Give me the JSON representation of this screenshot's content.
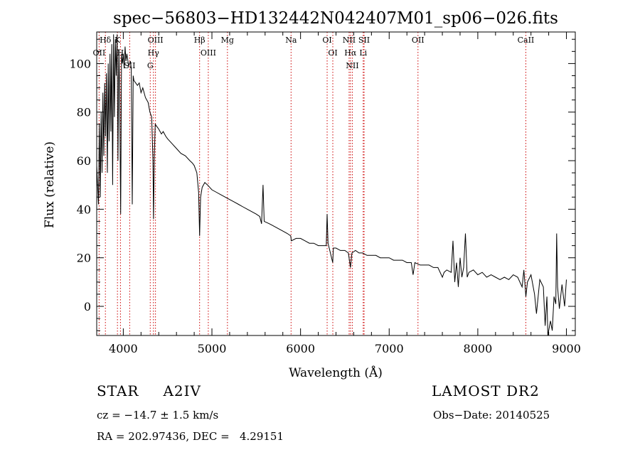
{
  "chart_data": {
    "type": "line",
    "title": "spec−56803−HD132442N042407M01_sp06−026.fits",
    "xlabel": "Wavelength (Å)",
    "ylabel": "Flux (relative)",
    "xlim": [
      3700,
      9100
    ],
    "ylim": [
      -12,
      113
    ],
    "xticks": [
      4000,
      5000,
      6000,
      7000,
      8000,
      9000
    ],
    "yticks": [
      0,
      20,
      40,
      60,
      80,
      100
    ],
    "grid": false,
    "series": [
      {
        "color": "#000000",
        "points": [
          [
            3700,
            58
          ],
          [
            3720,
            42
          ],
          [
            3730,
            75
          ],
          [
            3740,
            45
          ],
          [
            3750,
            80
          ],
          [
            3760,
            55
          ],
          [
            3770,
            88
          ],
          [
            3780,
            62
          ],
          [
            3790,
            92
          ],
          [
            3800,
            70
          ],
          [
            3810,
            96
          ],
          [
            3820,
            55
          ],
          [
            3830,
            100
          ],
          [
            3840,
            68
          ],
          [
            3850,
            104
          ],
          [
            3860,
            72
          ],
          [
            3870,
            108
          ],
          [
            3880,
            50
          ],
          [
            3890,
            112
          ],
          [
            3900,
            78
          ],
          [
            3910,
            110
          ],
          [
            3920,
            95
          ],
          [
            3930,
            112
          ],
          [
            3940,
            60
          ],
          [
            3950,
            106
          ],
          [
            3960,
            85
          ],
          [
            3970,
            38
          ],
          [
            3980,
            104
          ],
          [
            3990,
            100
          ],
          [
            4000,
            104
          ],
          [
            4010,
            98
          ],
          [
            4020,
            107
          ],
          [
            4030,
            101
          ],
          [
            4040,
            104
          ],
          [
            4060,
            99
          ],
          [
            4080,
            101
          ],
          [
            4090,
            98
          ],
          [
            4101,
            42
          ],
          [
            4112,
            95
          ],
          [
            4120,
            93
          ],
          [
            4140,
            92
          ],
          [
            4160,
            91
          ],
          [
            4180,
            92
          ],
          [
            4200,
            88
          ],
          [
            4220,
            90
          ],
          [
            4250,
            86
          ],
          [
            4280,
            84
          ],
          [
            4300,
            80
          ],
          [
            4320,
            78
          ],
          [
            4335,
            60
          ],
          [
            4341,
            36
          ],
          [
            4350,
            62
          ],
          [
            4360,
            75
          ],
          [
            4380,
            74
          ],
          [
            4400,
            73
          ],
          [
            4430,
            71
          ],
          [
            4450,
            72
          ],
          [
            4480,
            70
          ],
          [
            4500,
            69
          ],
          [
            4550,
            67
          ],
          [
            4600,
            65
          ],
          [
            4650,
            63
          ],
          [
            4700,
            62
          ],
          [
            4750,
            60
          ],
          [
            4780,
            59
          ],
          [
            4800,
            58
          ],
          [
            4830,
            55
          ],
          [
            4850,
            47
          ],
          [
            4861,
            29
          ],
          [
            4872,
            45
          ],
          [
            4890,
            49
          ],
          [
            4920,
            51
          ],
          [
            4950,
            50
          ],
          [
            5000,
            48
          ],
          [
            5050,
            47
          ],
          [
            5100,
            46
          ],
          [
            5150,
            45
          ],
          [
            5200,
            44
          ],
          [
            5250,
            43
          ],
          [
            5300,
            42
          ],
          [
            5350,
            41
          ],
          [
            5400,
            40
          ],
          [
            5450,
            39
          ],
          [
            5500,
            38
          ],
          [
            5540,
            37
          ],
          [
            5560,
            34
          ],
          [
            5577,
            50
          ],
          [
            5590,
            35
          ],
          [
            5650,
            34
          ],
          [
            5700,
            33
          ],
          [
            5750,
            32
          ],
          [
            5800,
            31
          ],
          [
            5850,
            30
          ],
          [
            5889,
            29
          ],
          [
            5896,
            27
          ],
          [
            5950,
            28
          ],
          [
            6000,
            28
          ],
          [
            6050,
            27
          ],
          [
            6100,
            26
          ],
          [
            6150,
            26
          ],
          [
            6200,
            25
          ],
          [
            6250,
            25
          ],
          [
            6290,
            25
          ],
          [
            6300,
            38
          ],
          [
            6310,
            26
          ],
          [
            6363,
            18
          ],
          [
            6370,
            24
          ],
          [
            6400,
            24
          ],
          [
            6450,
            23
          ],
          [
            6500,
            23
          ],
          [
            6540,
            22
          ],
          [
            6563,
            16
          ],
          [
            6580,
            22
          ],
          [
            6620,
            23
          ],
          [
            6660,
            22
          ],
          [
            6700,
            22
          ],
          [
            6750,
            21
          ],
          [
            6800,
            21
          ],
          [
            6850,
            21
          ],
          [
            6900,
            20
          ],
          [
            6950,
            20
          ],
          [
            7000,
            20
          ],
          [
            7050,
            19
          ],
          [
            7100,
            19
          ],
          [
            7150,
            19
          ],
          [
            7200,
            18
          ],
          [
            7250,
            18
          ],
          [
            7270,
            13
          ],
          [
            7290,
            18
          ],
          [
            7350,
            17
          ],
          [
            7400,
            17
          ],
          [
            7450,
            17
          ],
          [
            7500,
            16
          ],
          [
            7550,
            16
          ],
          [
            7600,
            12
          ],
          [
            7620,
            14
          ],
          [
            7650,
            15
          ],
          [
            7700,
            14
          ],
          [
            7720,
            27
          ],
          [
            7740,
            10
          ],
          [
            7760,
            18
          ],
          [
            7780,
            8
          ],
          [
            7800,
            20
          ],
          [
            7820,
            12
          ],
          [
            7840,
            16
          ],
          [
            7860,
            30
          ],
          [
            7880,
            12
          ],
          [
            7900,
            14
          ],
          [
            7950,
            15
          ],
          [
            8000,
            13
          ],
          [
            8050,
            14
          ],
          [
            8100,
            12
          ],
          [
            8150,
            13
          ],
          [
            8200,
            12
          ],
          [
            8250,
            11
          ],
          [
            8300,
            12
          ],
          [
            8350,
            11
          ],
          [
            8400,
            13
          ],
          [
            8450,
            12
          ],
          [
            8500,
            8
          ],
          [
            8520,
            15
          ],
          [
            8542,
            4
          ],
          [
            8560,
            10
          ],
          [
            8600,
            13
          ],
          [
            8640,
            5
          ],
          [
            8662,
            -3
          ],
          [
            8700,
            11
          ],
          [
            8740,
            8
          ],
          [
            8760,
            -8
          ],
          [
            8780,
            4
          ],
          [
            8790,
            -12
          ],
          [
            8800,
            -10
          ],
          [
            8820,
            -6
          ],
          [
            8840,
            -10
          ],
          [
            8860,
            4
          ],
          [
            8880,
            1
          ],
          [
            8890,
            30
          ],
          [
            8900,
            8
          ],
          [
            8920,
            -1
          ],
          [
            8950,
            9
          ],
          [
            8980,
            0
          ],
          [
            9000,
            11
          ]
        ]
      }
    ],
    "line_markers": [
      {
        "label": "Hδ",
        "wavelength": 3798
      },
      {
        "label": "OII",
        "wavelength": 3727
      },
      {
        "label": "K",
        "wavelength": 3934
      },
      {
        "label": "H",
        "wavelength": 3968
      },
      {
        "label": "SII",
        "wavelength": 4072
      },
      {
        "label": "OIII",
        "wavelength": 4363
      },
      {
        "label": "Hγ",
        "wavelength": 4340
      },
      {
        "label": "G",
        "wavelength": 4304
      },
      {
        "label": "Hβ",
        "wavelength": 4861
      },
      {
        "label": "OIII",
        "wavelength": 4959
      },
      {
        "label": "Mg",
        "wavelength": 5175
      },
      {
        "label": "Na",
        "wavelength": 5893
      },
      {
        "label": "OI",
        "wavelength": 6300
      },
      {
        "label": "OI",
        "wavelength": 6364
      },
      {
        "label": "NII",
        "wavelength": 6548
      },
      {
        "label": "Hα",
        "wavelength": 6563
      },
      {
        "label": "NII",
        "wavelength": 6584
      },
      {
        "label": "SII",
        "wavelength": 6717
      },
      {
        "label": "Li",
        "wavelength": 6707
      },
      {
        "label": "OII",
        "wavelength": 7325
      },
      {
        "label": "CaII",
        "wavelength": 8542
      }
    ],
    "marker_color": "#cc0000"
  },
  "info": {
    "class_label": "STAR",
    "subclass": "A2IV",
    "cz_text": "cz = −14.7 ± 1.5 km/s",
    "coords_text": "RA = 202.97436, DEC =   4.29151",
    "survey": "LAMOST DR2",
    "obs_date_text": "Obs−Date: 20140525"
  }
}
